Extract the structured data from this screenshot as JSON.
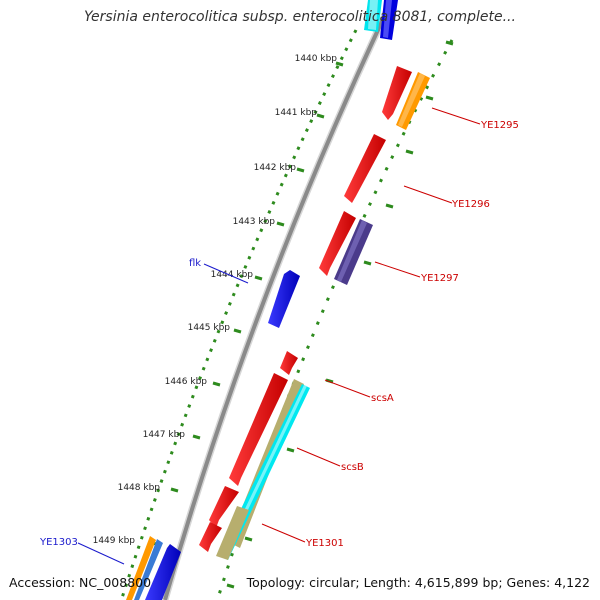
{
  "title": "Yersinia enterocolitica subsp. enterocolitica 8081, complete...",
  "accession": "Accession: NC_008800",
  "summary": "Topology: circular; Length: 4,615,899 bp; Genes: 4,122",
  "colors": {
    "backbone": "#8c8c8c",
    "tick": "#2e8b1e",
    "label_forward": "#cc0000",
    "label_reverse": "#00008b"
  },
  "scale_labels": [
    "1440 kbp",
    "1441 kbp",
    "1442 kbp",
    "1443 kbp",
    "1444 kbp",
    "1445 kbp",
    "1446 kbp",
    "1447 kbp",
    "1448 kbp",
    "1449 kbp"
  ],
  "gene_labels": [
    {
      "name": "YE1295",
      "strand": "forward"
    },
    {
      "name": "YE1296",
      "strand": "forward"
    },
    {
      "name": "YE1297",
      "strand": "forward"
    },
    {
      "name": "scsA",
      "strand": "forward"
    },
    {
      "name": "scsB",
      "strand": "forward"
    },
    {
      "name": "YE1301",
      "strand": "forward"
    },
    {
      "name": "flk",
      "strand": "reverse"
    },
    {
      "name": "YE1303",
      "strand": "reverse"
    }
  ]
}
